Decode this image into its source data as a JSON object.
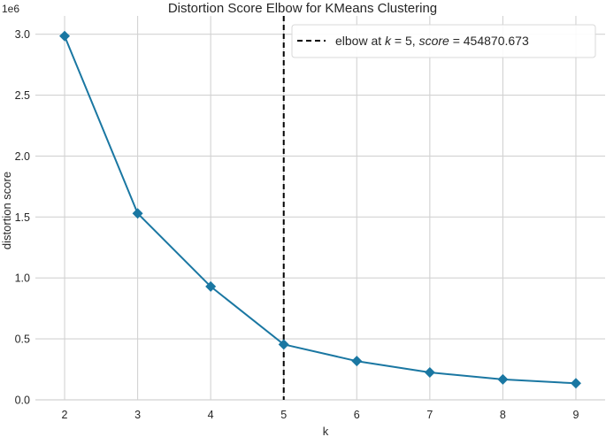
{
  "chart_data": {
    "type": "line",
    "title": "Distortion Score Elbow for KMeans Clustering",
    "xlabel": "k",
    "ylabel": "distortion score",
    "y_exponent_label": "1e6",
    "x": [
      2,
      3,
      4,
      5,
      6,
      7,
      8,
      9
    ],
    "series": [
      {
        "values": [
          2985000,
          1530000,
          930000,
          454870.673,
          318000,
          225000,
          168000,
          136000
        ],
        "color": "#1a77a2",
        "marker": "diamond"
      }
    ],
    "xlim": [
      1.6,
      9.4
    ],
    "ylim": [
      0,
      3150000
    ],
    "x_ticks": [
      2,
      3,
      4,
      5,
      6,
      7,
      8,
      9
    ],
    "y_ticks": [
      0,
      500000,
      1000000,
      1500000,
      2000000,
      2500000,
      3000000
    ],
    "y_tick_labels": [
      "0.0",
      "0.5",
      "1.0",
      "1.5",
      "2.0",
      "2.5",
      "3.0"
    ],
    "grid": true,
    "elbow": {
      "k": 5,
      "score": 454870.673,
      "line_color": "#000000",
      "line_style": "dashed"
    },
    "legend": {
      "placement": "top-right",
      "prefix": "elbow at ",
      "k_symbol": "k",
      "k_text": " = 5, ",
      "score_symbol": "score",
      "score_text": " = 454870.673"
    }
  }
}
